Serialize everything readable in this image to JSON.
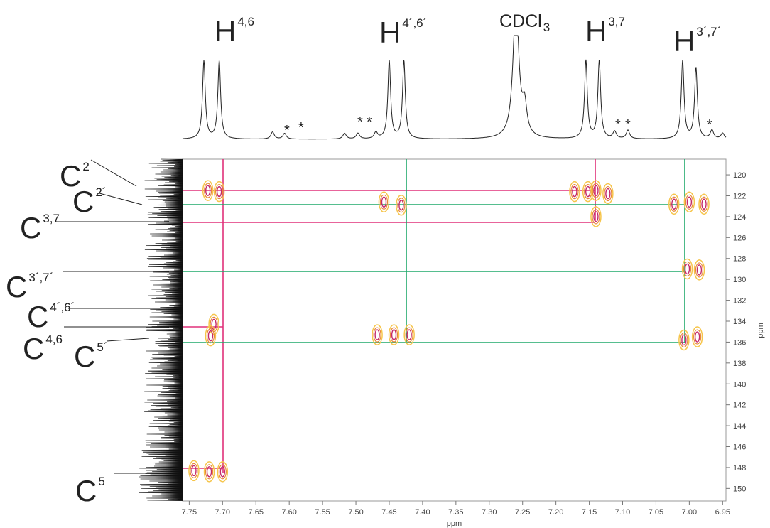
{
  "chart_data": {
    "type": "scatter",
    "xlabel": "ppm",
    "ylabel": "ppm",
    "xlim": [
      7.76,
      6.945
    ],
    "ylim": [
      118.5,
      151.2
    ],
    "xticks": [
      {
        "value": 7.75,
        "label": "7.75"
      },
      {
        "value": 7.7,
        "label": "7.70"
      },
      7.65,
      {
        "value": 7.6,
        "label": "7.60"
      },
      7.55,
      {
        "value": 7.5,
        "label": "7.50"
      },
      7.45,
      {
        "value": 7.4,
        "label": "7.40"
      },
      7.35,
      {
        "value": 7.3,
        "label": "7.30"
      },
      7.25,
      {
        "value": 7.2,
        "label": "7.20"
      },
      7.15,
      {
        "value": 7.1,
        "label": "7.10"
      },
      7.05,
      {
        "value": 7.0,
        "label": "7.00"
      },
      6.95
    ],
    "yticks": [
      120,
      122,
      124,
      126,
      128,
      130,
      132,
      134,
      136,
      138,
      140,
      142,
      144,
      146,
      148,
      150
    ],
    "x": [
      7.722,
      7.705,
      7.458,
      7.432,
      7.172,
      7.152,
      7.14,
      7.122,
      7.14,
      7.023,
      7.0,
      6.978,
      7.003,
      6.985,
      7.713,
      7.718,
      7.468,
      7.443,
      7.42,
      7.008,
      6.988,
      7.743,
      7.72,
      7.7
    ],
    "y": [
      121.5,
      121.6,
      122.6,
      122.9,
      121.6,
      121.6,
      121.5,
      121.8,
      124.0,
      122.8,
      122.6,
      122.8,
      129.0,
      129.1,
      134.3,
      135.4,
      135.3,
      135.3,
      135.3,
      135.8,
      135.5,
      148.3,
      148.4,
      148.4
    ],
    "proton_labels": [
      {
        "base": "H",
        "sup": "4,6"
      },
      {
        "base": "H",
        "sup": "4´,6´"
      },
      {
        "base": "CDCl",
        "sub": "3"
      },
      {
        "base": "H",
        "sup": "3,7"
      },
      {
        "base": "H",
        "sup": "3´,7´"
      }
    ],
    "carbon_labels": [
      {
        "base": "C",
        "sup": "2"
      },
      {
        "base": "C",
        "sup": "2´"
      },
      {
        "base": "C",
        "sup": "3,7"
      },
      {
        "base": "C",
        "sup": "3´,7´"
      },
      {
        "base": "C",
        "sup": "4´,6´"
      },
      {
        "base": "C",
        "sup": "4,6"
      },
      {
        "base": "C",
        "sup": "5´"
      },
      {
        "base": "C",
        "sup": "5"
      }
    ],
    "asterisks": [
      "*",
      "*",
      "*",
      "*",
      "*",
      "*",
      "*"
    ]
  }
}
